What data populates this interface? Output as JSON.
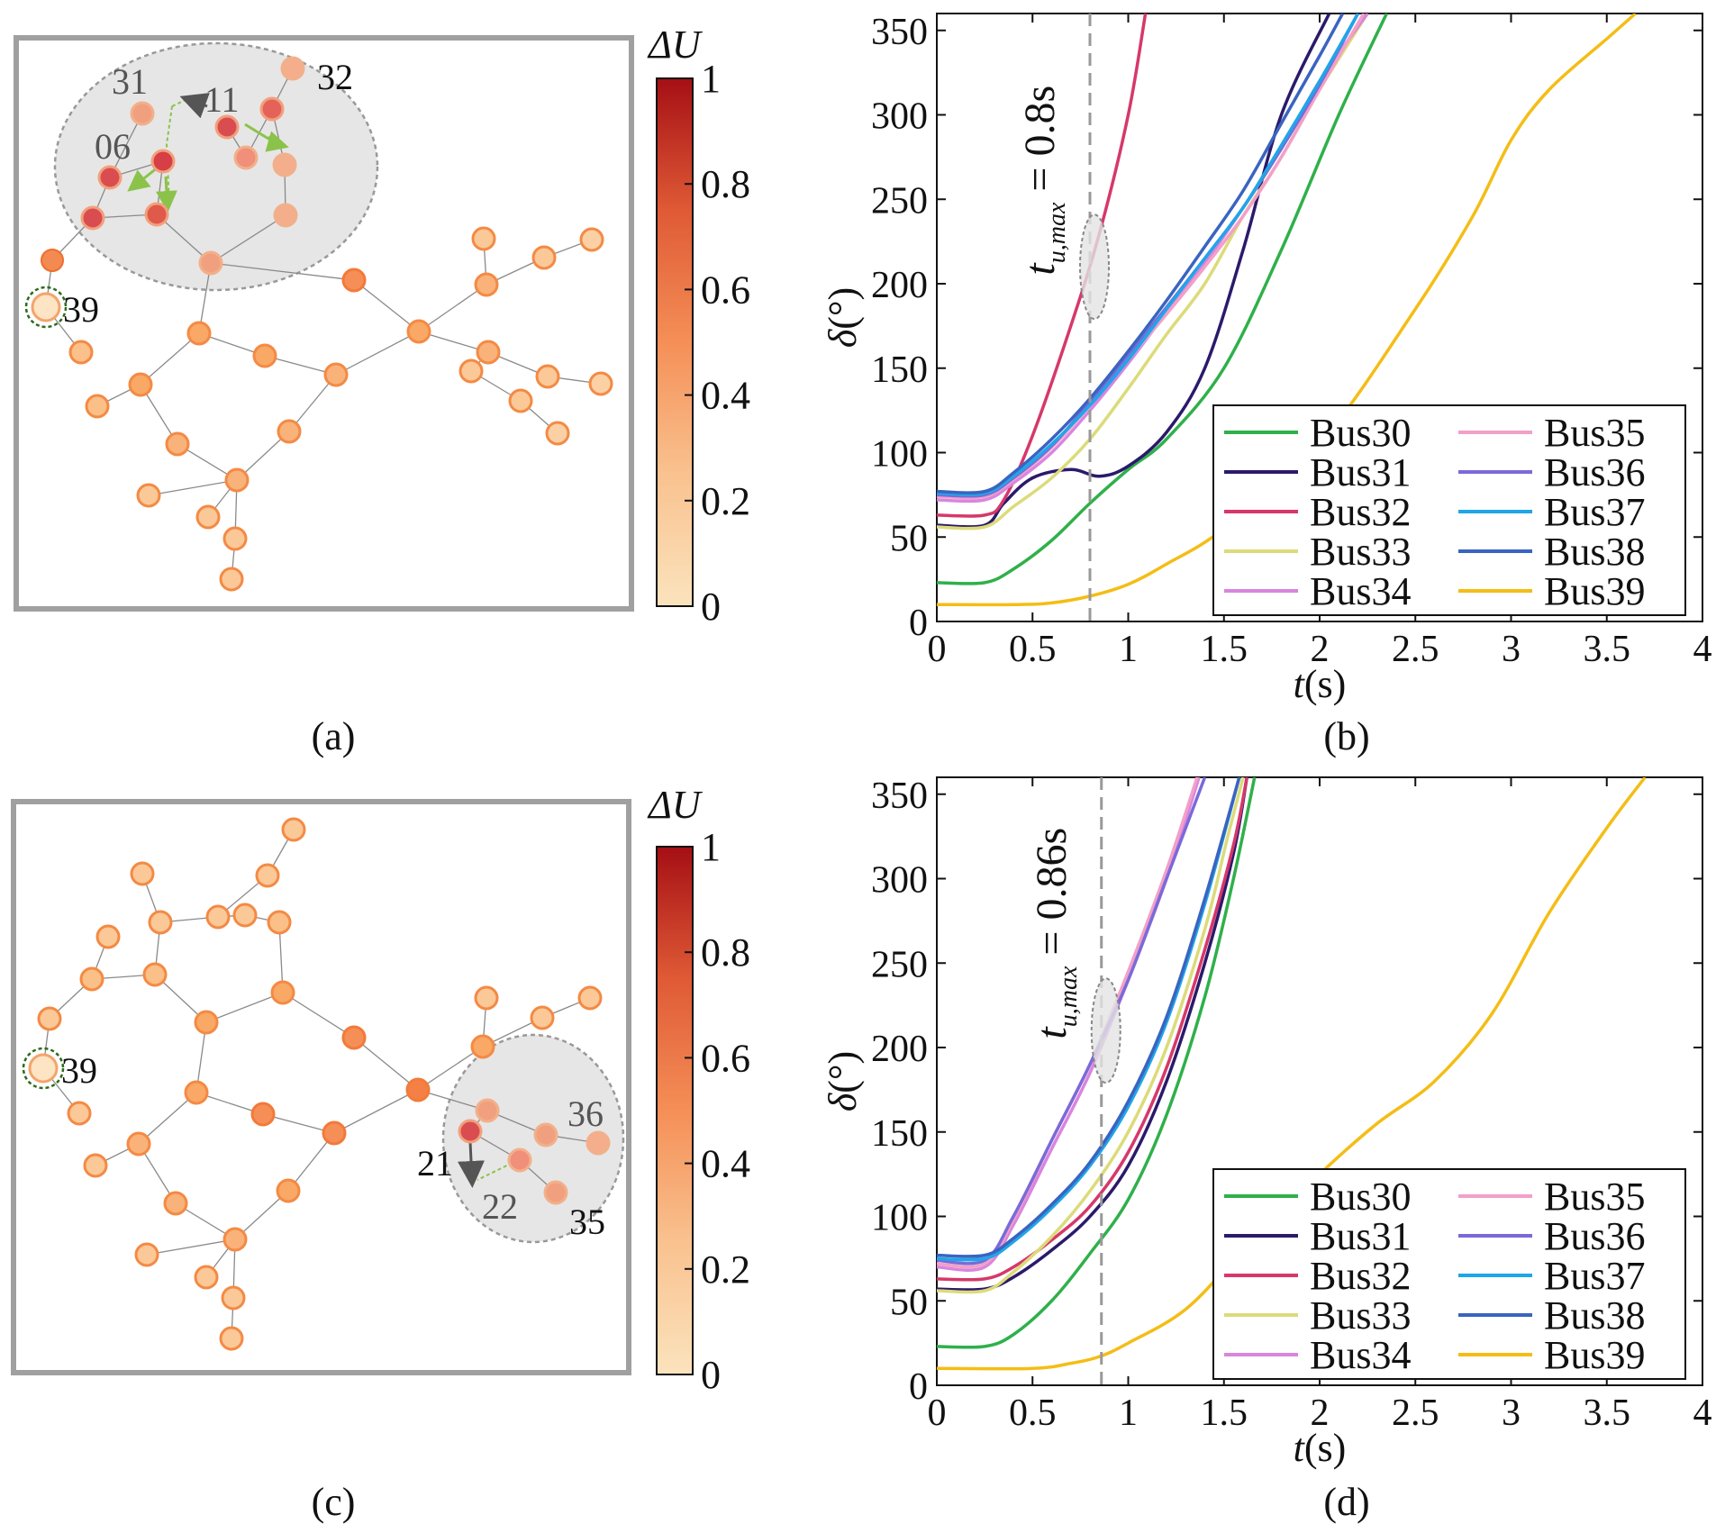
{
  "panel_labels": {
    "a": "(a)",
    "b": "(b)",
    "c": "(c)",
    "d": "(d)"
  },
  "colorbar": {
    "title": "ΔU",
    "ticks": [
      "0",
      "0.2",
      "0.4",
      "0.6",
      "0.8",
      "1"
    ],
    "colors": {
      "low": "#fbe3bd",
      "mid1": "#f9b27a",
      "mid2": "#f38a52",
      "mid3": "#df5a35",
      "high": "#a50f15"
    }
  },
  "network_a": {
    "labels": {
      "bus31": "31",
      "bus11": "11",
      "bus32": "32",
      "bus06": "06",
      "bus39": "39"
    }
  },
  "network_c": {
    "labels": {
      "bus21": "21",
      "bus22": "22",
      "bus36": "36",
      "bus35": "35",
      "bus39": "39"
    }
  },
  "chart_data": [
    {
      "type": "line",
      "panel": "(b)",
      "xlabel": "t(s)",
      "ylabel": "δ(°)",
      "xlim": [
        0,
        4
      ],
      "ylim": [
        0,
        360
      ],
      "xticks": [
        "0",
        "0.5",
        "1",
        "1.5",
        "2",
        "2.5",
        "3",
        "3.5",
        "4"
      ],
      "yticks": [
        "0",
        "50",
        "100",
        "150",
        "200",
        "250",
        "300",
        "350"
      ],
      "annotation": {
        "text_t": "t",
        "text_sub": "u,max",
        "text_eq": "= 0.8s",
        "t_value": 0.8
      },
      "legend": [
        "Bus30",
        "Bus31",
        "Bus32",
        "Bus33",
        "Bus34",
        "Bus35",
        "Bus36",
        "Bus37",
        "Bus38",
        "Bus39"
      ],
      "series": [
        {
          "name": "Bus30",
          "color": "#2fb04a",
          "points": [
            [
              0,
              23
            ],
            [
              0.25,
              23
            ],
            [
              0.4,
              31
            ],
            [
              0.6,
              48
            ],
            [
              0.8,
              70
            ],
            [
              1.0,
              90
            ],
            [
              1.2,
              108
            ],
            [
              1.5,
              150
            ],
            [
              1.8,
              220
            ],
            [
              2.1,
              300
            ],
            [
              2.35,
              360
            ]
          ]
        },
        {
          "name": "Bus31",
          "color": "#2b1a6b",
          "points": [
            [
              0,
              57
            ],
            [
              0.25,
              57
            ],
            [
              0.35,
              70
            ],
            [
              0.5,
              85
            ],
            [
              0.7,
              90
            ],
            [
              0.85,
              86
            ],
            [
              1.0,
              92
            ],
            [
              1.2,
              112
            ],
            [
              1.4,
              150
            ],
            [
              1.6,
              220
            ],
            [
              1.8,
              300
            ],
            [
              2.05,
              360
            ]
          ]
        },
        {
          "name": "Bus32",
          "color": "#d6386a",
          "points": [
            [
              0,
              63
            ],
            [
              0.25,
              63
            ],
            [
              0.35,
              72
            ],
            [
              0.5,
              110
            ],
            [
              0.7,
              175
            ],
            [
              0.85,
              230
            ],
            [
              1.0,
              300
            ],
            [
              1.09,
              360
            ]
          ]
        },
        {
          "name": "Bus33",
          "color": "#dcdb7a",
          "points": [
            [
              0,
              56
            ],
            [
              0.25,
              56
            ],
            [
              0.4,
              68
            ],
            [
              0.6,
              85
            ],
            [
              0.8,
              108
            ],
            [
              1.0,
              138
            ],
            [
              1.2,
              170
            ],
            [
              1.4,
              200
            ],
            [
              1.6,
              240
            ],
            [
              1.8,
              275
            ],
            [
              2.0,
              315
            ],
            [
              2.25,
              360
            ]
          ]
        },
        {
          "name": "Bus34",
          "color": "#d985de",
          "points": [
            [
              0,
              72
            ],
            [
              0.25,
              72
            ],
            [
              0.4,
              82
            ],
            [
              0.6,
              100
            ],
            [
              0.8,
              125
            ],
            [
              1.0,
              153
            ],
            [
              1.2,
              183
            ],
            [
              1.4,
              212
            ],
            [
              1.6,
              245
            ],
            [
              1.8,
              280
            ],
            [
              2.0,
              320
            ],
            [
              2.25,
              360
            ]
          ]
        },
        {
          "name": "Bus35",
          "color": "#f2a0c8",
          "points": [
            [
              0,
              74
            ],
            [
              0.25,
              74
            ],
            [
              0.4,
              84
            ],
            [
              0.6,
              103
            ],
            [
              0.8,
              128
            ],
            [
              1.0,
              155
            ],
            [
              1.2,
              182
            ],
            [
              1.4,
              210
            ],
            [
              1.6,
              240
            ],
            [
              1.8,
              275
            ],
            [
              2.0,
              315
            ],
            [
              2.23,
              360
            ]
          ]
        },
        {
          "name": "Bus36",
          "color": "#7a6ad9",
          "points": [
            [
              0,
              75
            ],
            [
              0.25,
              75
            ],
            [
              0.4,
              85
            ],
            [
              0.6,
              104
            ],
            [
              0.8,
              130
            ],
            [
              1.0,
              158
            ],
            [
              1.2,
              186
            ],
            [
              1.4,
              215
            ],
            [
              1.6,
              245
            ],
            [
              1.8,
              280
            ],
            [
              2.0,
              318
            ],
            [
              2.2,
              360
            ]
          ]
        },
        {
          "name": "Bus37",
          "color": "#1fa6e8",
          "points": [
            [
              0,
              76
            ],
            [
              0.25,
              76
            ],
            [
              0.4,
              86
            ],
            [
              0.6,
              105
            ],
            [
              0.8,
              128
            ],
            [
              1.0,
              155
            ],
            [
              1.2,
              185
            ],
            [
              1.4,
              215
            ],
            [
              1.6,
              245
            ],
            [
              1.8,
              282
            ],
            [
              2.0,
              320
            ],
            [
              2.2,
              360
            ]
          ]
        },
        {
          "name": "Bus38",
          "color": "#3a64c0",
          "points": [
            [
              0,
              77
            ],
            [
              0.25,
              77
            ],
            [
              0.4,
              88
            ],
            [
              0.6,
              108
            ],
            [
              0.8,
              132
            ],
            [
              1.0,
              160
            ],
            [
              1.2,
              190
            ],
            [
              1.4,
              222
            ],
            [
              1.6,
              255
            ],
            [
              1.8,
              295
            ],
            [
              2.0,
              335
            ],
            [
              2.12,
              360
            ]
          ]
        },
        {
          "name": "Bus39",
          "color": "#f4bd16",
          "points": [
            [
              0,
              10
            ],
            [
              0.4,
              10
            ],
            [
              0.6,
              11
            ],
            [
              0.8,
              15
            ],
            [
              1.0,
              22
            ],
            [
              1.2,
              34
            ],
            [
              1.5,
              55
            ],
            [
              2.0,
              105
            ],
            [
              2.5,
              185
            ],
            [
              2.8,
              240
            ],
            [
              3.0,
              285
            ],
            [
              3.2,
              315
            ],
            [
              3.5,
              345
            ],
            [
              3.65,
              360
            ]
          ]
        }
      ]
    },
    {
      "type": "line",
      "panel": "(d)",
      "xlabel": "t(s)",
      "ylabel": "δ(°)",
      "xlim": [
        0,
        4
      ],
      "ylim": [
        0,
        360
      ],
      "xticks": [
        "0",
        "0.5",
        "1",
        "1.5",
        "2",
        "2.5",
        "3",
        "3.5",
        "4"
      ],
      "yticks": [
        "0",
        "50",
        "100",
        "150",
        "200",
        "250",
        "300",
        "350"
      ],
      "annotation": {
        "text_t": "t",
        "text_sub": "u,max",
        "text_eq": "= 0.86s",
        "t_value": 0.86
      },
      "legend": [
        "Bus30",
        "Bus31",
        "Bus32",
        "Bus33",
        "Bus34",
        "Bus35",
        "Bus36",
        "Bus37",
        "Bus38",
        "Bus39"
      ],
      "series": [
        {
          "name": "Bus30",
          "color": "#2fb04a",
          "points": [
            [
              0,
              23
            ],
            [
              0.25,
              23
            ],
            [
              0.4,
              30
            ],
            [
              0.6,
              50
            ],
            [
              0.8,
              78
            ],
            [
              1.0,
              110
            ],
            [
              1.2,
              160
            ],
            [
              1.4,
              230
            ],
            [
              1.55,
              300
            ],
            [
              1.66,
              360
            ]
          ]
        },
        {
          "name": "Bus31",
          "color": "#2b1a6b",
          "points": [
            [
              0,
              57
            ],
            [
              0.25,
              57
            ],
            [
              0.4,
              64
            ],
            [
              0.6,
              80
            ],
            [
              0.8,
              100
            ],
            [
              1.0,
              130
            ],
            [
              1.2,
              180
            ],
            [
              1.4,
              250
            ],
            [
              1.55,
              315
            ],
            [
              1.62,
              360
            ]
          ]
        },
        {
          "name": "Bus32",
          "color": "#d6386a",
          "points": [
            [
              0,
              63
            ],
            [
              0.25,
              63
            ],
            [
              0.4,
              70
            ],
            [
              0.6,
              86
            ],
            [
              0.8,
              106
            ],
            [
              1.0,
              138
            ],
            [
              1.2,
              188
            ],
            [
              1.4,
              258
            ],
            [
              1.55,
              320
            ],
            [
              1.62,
              360
            ]
          ]
        },
        {
          "name": "Bus33",
          "color": "#dcdb7a",
          "points": [
            [
              0,
              56
            ],
            [
              0.25,
              56
            ],
            [
              0.4,
              67
            ],
            [
              0.6,
              88
            ],
            [
              0.8,
              115
            ],
            [
              1.0,
              150
            ],
            [
              1.2,
              200
            ],
            [
              1.4,
              270
            ],
            [
              1.52,
              325
            ],
            [
              1.6,
              360
            ]
          ]
        },
        {
          "name": "Bus34",
          "color": "#d985de",
          "points": [
            [
              0,
              70
            ],
            [
              0.25,
              70
            ],
            [
              0.4,
              95
            ],
            [
              0.6,
              140
            ],
            [
              0.8,
              185
            ],
            [
              1.0,
              240
            ],
            [
              1.2,
              300
            ],
            [
              1.37,
              360
            ]
          ]
        },
        {
          "name": "Bus35",
          "color": "#f2a0c8",
          "points": [
            [
              0,
              72
            ],
            [
              0.25,
              72
            ],
            [
              0.4,
              98
            ],
            [
              0.6,
              145
            ],
            [
              0.8,
              190
            ],
            [
              1.0,
              245
            ],
            [
              1.2,
              305
            ],
            [
              1.36,
              360
            ]
          ]
        },
        {
          "name": "Bus36",
          "color": "#7a6ad9",
          "points": [
            [
              0,
              74
            ],
            [
              0.25,
              74
            ],
            [
              0.4,
              100
            ],
            [
              0.6,
              145
            ],
            [
              0.8,
              190
            ],
            [
              1.0,
              240
            ],
            [
              1.2,
              300
            ],
            [
              1.4,
              360
            ]
          ]
        },
        {
          "name": "Bus37",
          "color": "#1fa6e8",
          "points": [
            [
              0,
              75
            ],
            [
              0.25,
              75
            ],
            [
              0.4,
              85
            ],
            [
              0.6,
              105
            ],
            [
              0.8,
              130
            ],
            [
              1.0,
              165
            ],
            [
              1.2,
              215
            ],
            [
              1.4,
              285
            ],
            [
              1.58,
              360
            ]
          ]
        },
        {
          "name": "Bus38",
          "color": "#3a64c0",
          "points": [
            [
              0,
              77
            ],
            [
              0.25,
              77
            ],
            [
              0.4,
              87
            ],
            [
              0.6,
              107
            ],
            [
              0.8,
              132
            ],
            [
              1.0,
              168
            ],
            [
              1.2,
              218
            ],
            [
              1.4,
              288
            ],
            [
              1.58,
              360
            ]
          ]
        },
        {
          "name": "Bus39",
          "color": "#f4bd16",
          "points": [
            [
              0,
              10
            ],
            [
              0.5,
              10
            ],
            [
              0.7,
              13
            ],
            [
              0.85,
              17
            ],
            [
              1.0,
              25
            ],
            [
              1.3,
              45
            ],
            [
              1.6,
              80
            ],
            [
              2.0,
              125
            ],
            [
              2.3,
              155
            ],
            [
              2.6,
              180
            ],
            [
              2.9,
              220
            ],
            [
              3.2,
              280
            ],
            [
              3.5,
              330
            ],
            [
              3.7,
              360
            ]
          ]
        }
      ]
    }
  ]
}
